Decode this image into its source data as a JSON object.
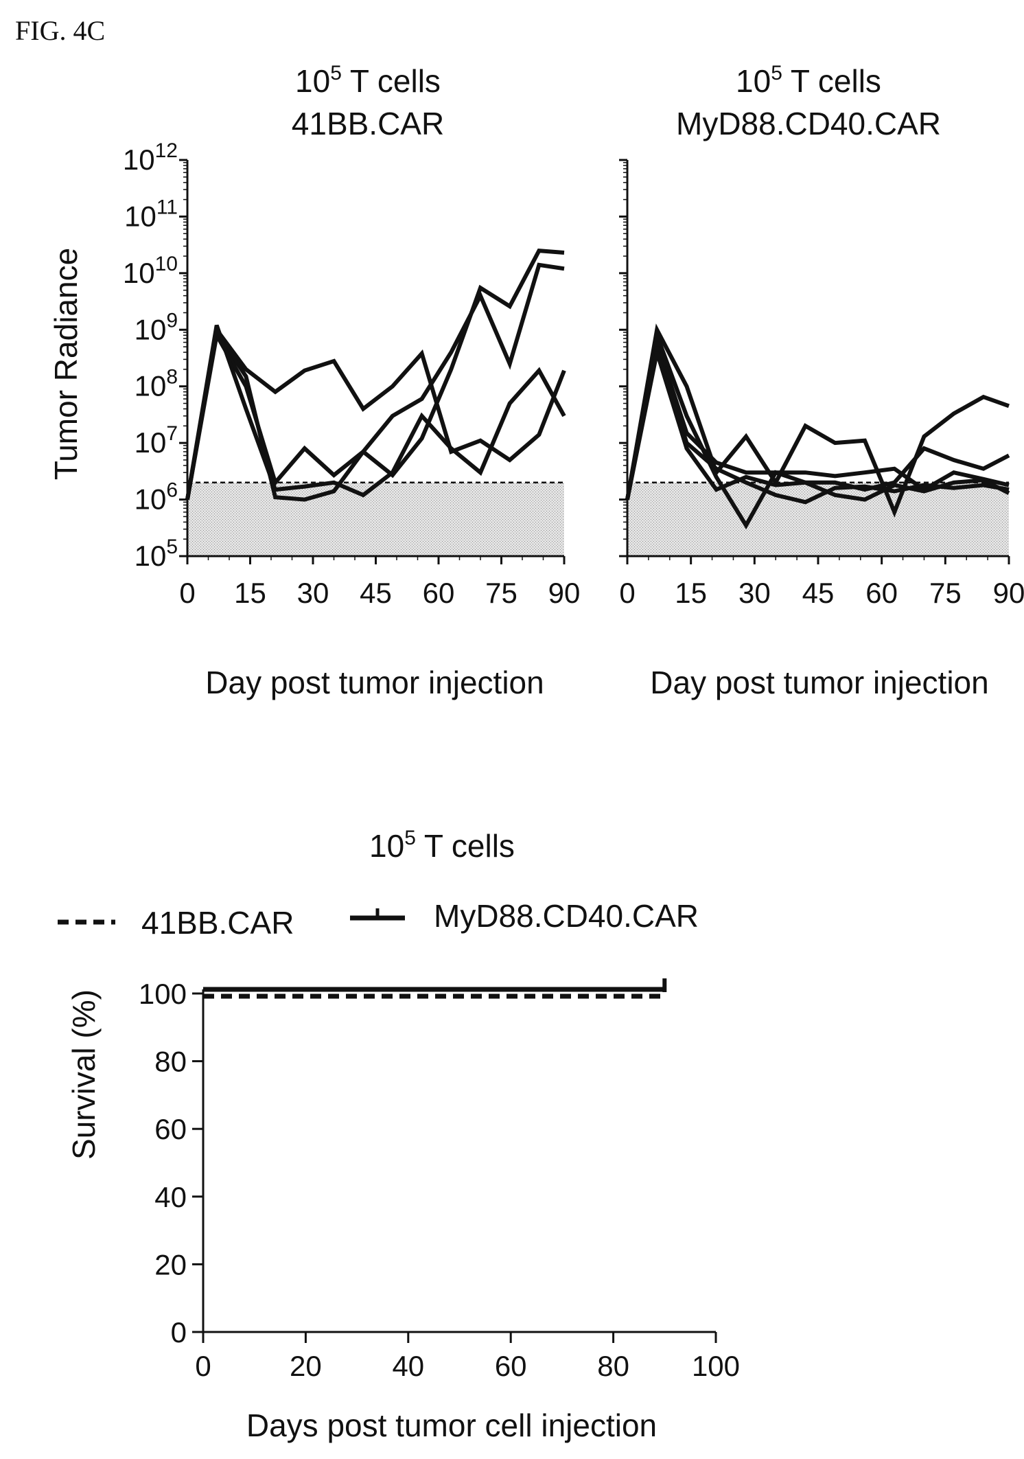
{
  "figure_label": "FIG. 4C",
  "chart_data": [
    {
      "type": "line",
      "title_line1_base": "10",
      "title_line1_exp": "5",
      "title_line1_rest": " T cells",
      "title_line2": "41BB.CAR",
      "ylabel": "Tumor Radiance",
      "xlabel": "Day post tumor injection",
      "yscale": "log",
      "ylim": [
        100000,
        1000000000000
      ],
      "xlim": [
        0,
        90
      ],
      "xticks": [
        0,
        15,
        30,
        45,
        60,
        75,
        90
      ],
      "yticks": [
        {
          "base": "10",
          "exp": "5"
        },
        {
          "base": "10",
          "exp": "6"
        },
        {
          "base": "10",
          "exp": "7"
        },
        {
          "base": "10",
          "exp": "8"
        },
        {
          "base": "10",
          "exp": "9"
        },
        {
          "base": "10",
          "exp": "10"
        },
        {
          "base": "10",
          "exp": "11"
        },
        {
          "base": "10",
          "exp": "12"
        }
      ],
      "background_threshold": 2000000,
      "series": [
        {
          "points": [
            [
              0,
              1000000
            ],
            [
              7,
              1000000000
            ],
            [
              14,
              200000000
            ],
            [
              21,
              80000000
            ],
            [
              28,
              190000000
            ],
            [
              35,
              280000000
            ],
            [
              42,
              40000000
            ],
            [
              49,
              100000000
            ],
            [
              56,
              380000000
            ],
            [
              63,
              7000000
            ],
            [
              70,
              11000000
            ],
            [
              77,
              5000000
            ],
            [
              84,
              14000000
            ],
            [
              90,
              190000000
            ]
          ]
        },
        {
          "points": [
            [
              0,
              1000000
            ],
            [
              7,
              900000000
            ],
            [
              14,
              150000000
            ],
            [
              21,
              1100000
            ],
            [
              28,
              1000000
            ],
            [
              35,
              1400000
            ],
            [
              42,
              7000000
            ],
            [
              49,
              30000000
            ],
            [
              56,
              60000000
            ],
            [
              63,
              400000000
            ],
            [
              70,
              4000000000
            ],
            [
              77,
              250000000
            ],
            [
              84,
              14000000000
            ],
            [
              90,
              12000000000
            ]
          ]
        },
        {
          "points": [
            [
              0,
              1000000
            ],
            [
              7,
              800000000
            ],
            [
              14,
              100000000
            ],
            [
              21,
              2000000
            ],
            [
              28,
              8000000
            ],
            [
              35,
              2700000
            ],
            [
              42,
              7000000
            ],
            [
              49,
              2700000
            ],
            [
              56,
              12000000
            ],
            [
              63,
              200000000
            ],
            [
              70,
              5500000000
            ],
            [
              77,
              2600000000
            ],
            [
              84,
              25000000000
            ],
            [
              90,
              23000000000
            ]
          ]
        },
        {
          "points": [
            [
              0,
              1000000
            ],
            [
              7,
              1200000000
            ],
            [
              14,
              40000000
            ],
            [
              21,
              1500000
            ],
            [
              28,
              1700000
            ],
            [
              35,
              2000000
            ],
            [
              42,
              1200000
            ],
            [
              49,
              3000000
            ],
            [
              56,
              30000000
            ],
            [
              63,
              8000000
            ],
            [
              70,
              3000000
            ],
            [
              77,
              50000000
            ],
            [
              84,
              190000000
            ],
            [
              90,
              30000000
            ]
          ]
        }
      ]
    },
    {
      "type": "line",
      "title_line1_base": "10",
      "title_line1_exp": "5",
      "title_line1_rest": " T cells",
      "title_line2": "MyD88.CD40.CAR",
      "xlabel": "Day post tumor injection",
      "yscale": "log",
      "ylim": [
        100000,
        1000000000000
      ],
      "xlim": [
        0,
        90
      ],
      "xticks": [
        0,
        15,
        30,
        45,
        60,
        75,
        90
      ],
      "background_threshold": 2000000,
      "series": [
        {
          "points": [
            [
              0,
              1000000
            ],
            [
              7,
              1000000000
            ],
            [
              14,
              100000000
            ],
            [
              21,
              3000000
            ],
            [
              28,
              13000000
            ],
            [
              35,
              2000000
            ],
            [
              42,
              20000000
            ],
            [
              49,
              10000000
            ],
            [
              56,
              11000000
            ],
            [
              63,
              600000
            ],
            [
              70,
              13000000
            ],
            [
              77,
              33000000
            ],
            [
              84,
              65000000
            ],
            [
              90,
              45000000
            ]
          ]
        },
        {
          "points": [
            [
              0,
              1000000
            ],
            [
              7,
              800000000
            ],
            [
              14,
              30000000
            ],
            [
              21,
              2500000
            ],
            [
              28,
              350000
            ],
            [
              35,
              3000000
            ],
            [
              42,
              2000000
            ],
            [
              49,
              2000000
            ],
            [
              56,
              1500000
            ],
            [
              63,
              2000000
            ],
            [
              70,
              8000000
            ],
            [
              77,
              5000000
            ],
            [
              84,
              3500000
            ],
            [
              90,
              6000000
            ]
          ]
        },
        {
          "points": [
            [
              0,
              1000000
            ],
            [
              7,
              600000000
            ],
            [
              14,
              15000000
            ],
            [
              21,
              4500000
            ],
            [
              28,
              3000000
            ],
            [
              35,
              3000000
            ],
            [
              42,
              3000000
            ],
            [
              49,
              2600000
            ],
            [
              56,
              3000000
            ],
            [
              63,
              3500000
            ],
            [
              70,
              1500000
            ],
            [
              77,
              3000000
            ],
            [
              84,
              2300000
            ],
            [
              90,
              1800000
            ]
          ]
        },
        {
          "points": [
            [
              0,
              1000000
            ],
            [
              7,
              500000000
            ],
            [
              14,
              10000000
            ],
            [
              21,
              3500000
            ],
            [
              28,
              2000000
            ],
            [
              35,
              1200000
            ],
            [
              42,
              900000
            ],
            [
              49,
              1600000
            ],
            [
              56,
              1700000
            ],
            [
              63,
              1400000
            ],
            [
              70,
              1800000
            ],
            [
              77,
              1600000
            ],
            [
              84,
              1800000
            ],
            [
              90,
              1500000
            ]
          ]
        },
        {
          "points": [
            [
              0,
              1000000
            ],
            [
              7,
              400000000
            ],
            [
              14,
              8000000
            ],
            [
              21,
              1500000
            ],
            [
              28,
              2500000
            ],
            [
              35,
              1800000
            ],
            [
              42,
              2000000
            ],
            [
              49,
              1200000
            ],
            [
              56,
              1000000
            ],
            [
              63,
              1800000
            ],
            [
              70,
              1400000
            ],
            [
              77,
              2000000
            ],
            [
              84,
              2200000
            ],
            [
              90,
              1300000
            ]
          ]
        }
      ]
    },
    {
      "type": "line",
      "title_base": "10",
      "title_exp": "5",
      "title_rest": " T cells",
      "ylabel": "Survival (%)",
      "xlabel": "Days post tumor cell injection",
      "xlim": [
        0,
        100
      ],
      "ylim": [
        0,
        100
      ],
      "xticks": [
        0,
        20,
        40,
        60,
        80,
        100
      ],
      "yticks": [
        0,
        20,
        40,
        60,
        80,
        100
      ],
      "legend_position": "top",
      "series": [
        {
          "name": "41BB.CAR",
          "style": "dashed",
          "points": [
            [
              0,
              100
            ],
            [
              90,
              100
            ]
          ]
        },
        {
          "name": "MyD88.CD40.CAR",
          "style": "solid",
          "points": [
            [
              0,
              100
            ],
            [
              90,
              100
            ]
          ]
        }
      ]
    }
  ]
}
